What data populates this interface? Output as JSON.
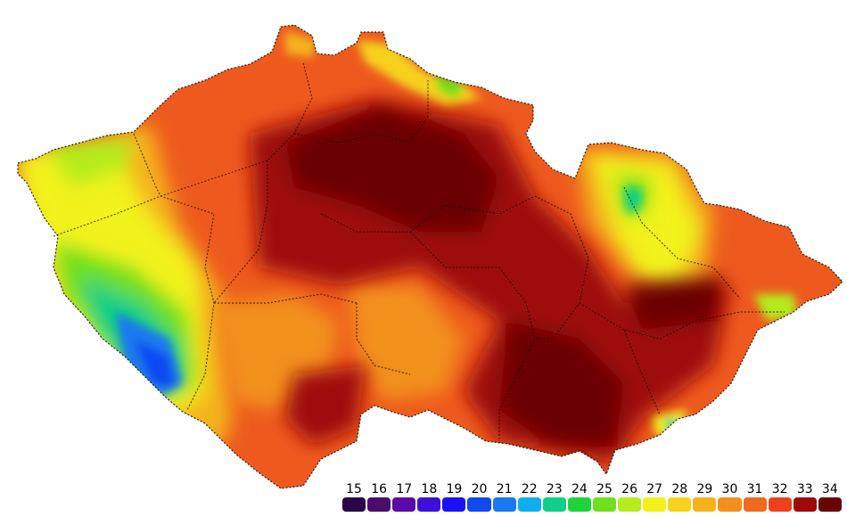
{
  "legend": {
    "items": [
      {
        "label": "15",
        "color": "#2a0548"
      },
      {
        "label": "16",
        "color": "#4a0d6e"
      },
      {
        "label": "17",
        "color": "#5a0aa6"
      },
      {
        "label": "18",
        "color": "#3c10d8"
      },
      {
        "label": "19",
        "color": "#1a12f2"
      },
      {
        "label": "20",
        "color": "#1048f2"
      },
      {
        "label": "21",
        "color": "#1a78f0"
      },
      {
        "label": "22",
        "color": "#10aef0"
      },
      {
        "label": "23",
        "color": "#10cf86"
      },
      {
        "label": "24",
        "color": "#1ed43a"
      },
      {
        "label": "25",
        "color": "#6ee01e"
      },
      {
        "label": "26",
        "color": "#b4ec1e"
      },
      {
        "label": "27",
        "color": "#f2f21a"
      },
      {
        "label": "28",
        "color": "#f6d21a"
      },
      {
        "label": "29",
        "color": "#f4b21c"
      },
      {
        "label": "30",
        "color": "#f2901e"
      },
      {
        "label": "31",
        "color": "#ee6a1e"
      },
      {
        "label": "32",
        "color": "#f0401a"
      },
      {
        "label": "33",
        "color": "#9e0a0a"
      },
      {
        "label": "34",
        "color": "#6a0404"
      }
    ]
  }
}
